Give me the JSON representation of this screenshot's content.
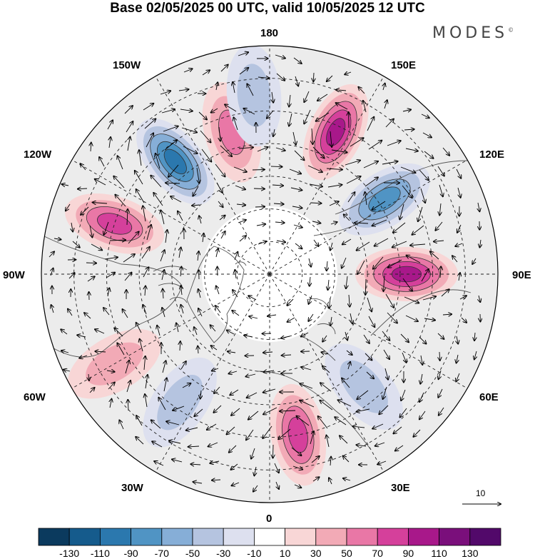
{
  "title": "Base 02/05/2025 00 UTC, valid 10/05/2025 12 UTC",
  "logo": "MODES",
  "logo_mark": "©",
  "longitude_labels": {
    "top": "180",
    "top_left": "150W",
    "top_right": "150E",
    "upper_left": "120W",
    "upper_right": "120E",
    "left": "90W",
    "right": "90E",
    "lower_left": "60W",
    "lower_right": "60E",
    "bottom_left": "30W",
    "bottom_right": "30E",
    "bottom": "0"
  },
  "reference_vector": "10",
  "colorbar": {
    "ticks": [
      "-130",
      "-110",
      "-90",
      "-70",
      "-50",
      "-30",
      "-10",
      "10",
      "30",
      "50",
      "70",
      "90",
      "110",
      "130"
    ],
    "colors": [
      "#0b3a5e",
      "#155b8c",
      "#2b78ae",
      "#5094c4",
      "#86aed7",
      "#b5c4e0",
      "#dde0ef",
      "#ffffff",
      "#f8d6d6",
      "#f2aab6",
      "#e977a6",
      "#d5409b",
      "#a8188a",
      "#7a0f7b",
      "#52096a"
    ]
  },
  "anomalies": [
    {
      "lon": -140,
      "lat": 45,
      "value": -90
    },
    {
      "lon": -108,
      "lat": 40,
      "value": 80
    },
    {
      "lon": -165,
      "lat": 45,
      "value": 60
    },
    {
      "lon": -175,
      "lat": 35,
      "value": -40
    },
    {
      "lon": 155,
      "lat": 42,
      "value": 95
    },
    {
      "lon": 123,
      "lat": 48,
      "value": -80
    },
    {
      "lon": 90,
      "lat": 48,
      "value": 90
    },
    {
      "lon": 10,
      "lat": 40,
      "value": 70
    },
    {
      "lon": 40,
      "lat": 45,
      "value": -40
    },
    {
      "lon": -60,
      "lat": 35,
      "value": 35
    },
    {
      "lon": -35,
      "lat": 42,
      "value": -40
    }
  ]
}
